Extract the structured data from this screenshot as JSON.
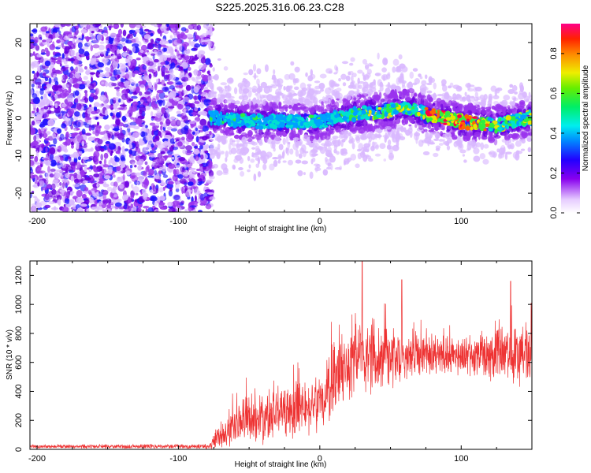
{
  "title": "S225.2025.316.06.23.C28",
  "chart_data": [
    {
      "type": "heatmap",
      "title": "",
      "xlabel": "Height of straight line (km)",
      "ylabel": "Frequency (Hz)",
      "xlim": [
        -205,
        150
      ],
      "ylim": [
        -25,
        25
      ],
      "xticks": [
        -200,
        -100,
        0,
        100
      ],
      "yticks": [
        -20,
        -10,
        0,
        10,
        20
      ],
      "colorbar": {
        "label": "Normalized spectral amplitude",
        "range": [
          0.0,
          0.95
        ],
        "ticks": [
          0.0,
          0.2,
          0.4,
          0.6,
          0.8
        ],
        "tick_labels": [
          "0.0",
          "0.2",
          "0.4",
          "0.6",
          "0.8"
        ]
      },
      "signal_band": {
        "description": "noise-only scatter below ~-78 km; concentrated band near 0 Hz above",
        "onset_km": -78,
        "center_freq_hz": [
          {
            "x": -75,
            "f": 0
          },
          {
            "x": -50,
            "f": -1
          },
          {
            "x": -25,
            "f": -1
          },
          {
            "x": 0,
            "f": -1
          },
          {
            "x": 25,
            "f": 1
          },
          {
            "x": 50,
            "f": 2
          },
          {
            "x": 60,
            "f": 3
          },
          {
            "x": 75,
            "f": 1
          },
          {
            "x": 100,
            "f": -1
          },
          {
            "x": 125,
            "f": -2
          },
          {
            "x": 148,
            "f": 0
          }
        ],
        "peak_amplitude_region_km": [
          75,
          120
        ]
      }
    },
    {
      "type": "line",
      "title": "",
      "xlabel": "Height of straight line (km)",
      "ylabel": "SNR (10 * v/v)",
      "xlim": [
        -205,
        150
      ],
      "ylim": [
        0,
        1300
      ],
      "xticks": [
        -200,
        -100,
        0,
        100
      ],
      "yticks": [
        0,
        200,
        400,
        600,
        800,
        1000,
        1200
      ],
      "color": "#ee3333",
      "series": [
        {
          "name": "SNR",
          "envelope": [
            {
              "x": -205,
              "base": 20,
              "amp": 15
            },
            {
              "x": -78,
              "base": 20,
              "amp": 20
            },
            {
              "x": -70,
              "base": 110,
              "amp": 130
            },
            {
              "x": -50,
              "base": 200,
              "amp": 180
            },
            {
              "x": -25,
              "base": 260,
              "amp": 220
            },
            {
              "x": 0,
              "base": 330,
              "amp": 220
            },
            {
              "x": 10,
              "base": 480,
              "amp": 280
            },
            {
              "x": 25,
              "base": 620,
              "amp": 300
            },
            {
              "x": 50,
              "base": 650,
              "amp": 260
            },
            {
              "x": 75,
              "base": 640,
              "amp": 180
            },
            {
              "x": 100,
              "base": 650,
              "amp": 150
            },
            {
              "x": 125,
              "base": 660,
              "amp": 240
            },
            {
              "x": 150,
              "base": 660,
              "amp": 260
            }
          ],
          "peaks": [
            {
              "x": 30,
              "y": 1300
            },
            {
              "x": 58,
              "y": 1170
            },
            {
              "x": 135,
              "y": 1160
            }
          ]
        }
      ]
    }
  ]
}
